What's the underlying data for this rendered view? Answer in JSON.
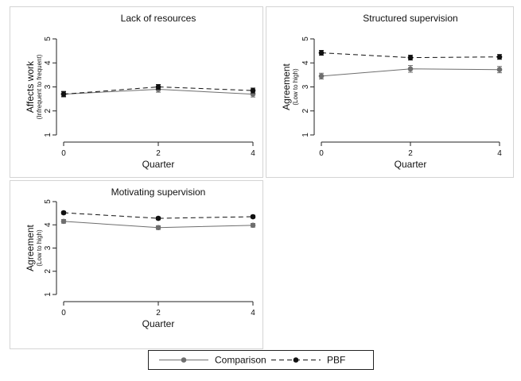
{
  "chart_data": [
    {
      "type": "line",
      "title": "Lack of resources",
      "xlabel": "Quarter",
      "ylabel": "Affects work",
      "ylabel_sub": "(Infrequent to frequent)",
      "x": [
        0,
        2,
        4
      ],
      "xticks": [
        "0",
        "2",
        "4"
      ],
      "yticks": [
        "1",
        "2",
        "3",
        "4",
        "5"
      ],
      "xlim": [
        0,
        4
      ],
      "ylim": [
        1,
        5
      ],
      "series": [
        {
          "name": "Comparison",
          "values": [
            2.7,
            2.9,
            2.7
          ],
          "err": [
            0.12,
            0.12,
            0.12
          ],
          "color": "#6e6e6e",
          "dash": "solid"
        },
        {
          "name": "PBF",
          "values": [
            2.7,
            3.0,
            2.85
          ],
          "err": [
            0.1,
            0.1,
            0.1
          ],
          "color": "#111111",
          "dash": "dashed"
        }
      ]
    },
    {
      "type": "line",
      "title": "Structured supervision",
      "xlabel": "Quarter",
      "ylabel": "Agreement",
      "ylabel_sub": "(Low to high)",
      "x": [
        0,
        2,
        4
      ],
      "xticks": [
        "0",
        "2",
        "4"
      ],
      "yticks": [
        "1",
        "2",
        "3",
        "4",
        "5"
      ],
      "xlim": [
        0,
        4
      ],
      "ylim": [
        1,
        5
      ],
      "series": [
        {
          "name": "Comparison",
          "values": [
            3.45,
            3.75,
            3.72
          ],
          "err": [
            0.12,
            0.14,
            0.13
          ],
          "color": "#6e6e6e",
          "dash": "solid"
        },
        {
          "name": "PBF",
          "values": [
            4.42,
            4.22,
            4.25
          ],
          "err": [
            0.1,
            0.1,
            0.1
          ],
          "color": "#111111",
          "dash": "dashed"
        }
      ]
    },
    {
      "type": "line",
      "title": "Motivating supervision",
      "xlabel": "Quarter",
      "ylabel": "Agreement",
      "ylabel_sub": "(Low to high)",
      "x": [
        0,
        2,
        4
      ],
      "xticks": [
        "0",
        "2",
        "4"
      ],
      "yticks": [
        "1",
        "2",
        "3",
        "4",
        "5"
      ],
      "xlim": [
        0,
        4
      ],
      "ylim": [
        1,
        5
      ],
      "series": [
        {
          "name": "Comparison",
          "values": [
            4.15,
            3.88,
            3.98
          ],
          "err": [
            0.08,
            0.08,
            0.08
          ],
          "color": "#6e6e6e",
          "dash": "solid"
        },
        {
          "name": "PBF",
          "values": [
            4.52,
            4.28,
            4.35
          ],
          "err": [
            0.06,
            0.06,
            0.06
          ],
          "color": "#111111",
          "dash": "dashed"
        }
      ]
    }
  ],
  "legend": {
    "placement": "bottom-center",
    "items": [
      {
        "label": "Comparison",
        "color": "#6e6e6e",
        "dash": "solid"
      },
      {
        "label": "PBF",
        "color": "#111111",
        "dash": "dashed"
      }
    ]
  },
  "colors": {
    "background": "#ffffff",
    "panel_border": "#d4d4d4",
    "comparison": "#6e6e6e",
    "pbf": "#111111"
  }
}
